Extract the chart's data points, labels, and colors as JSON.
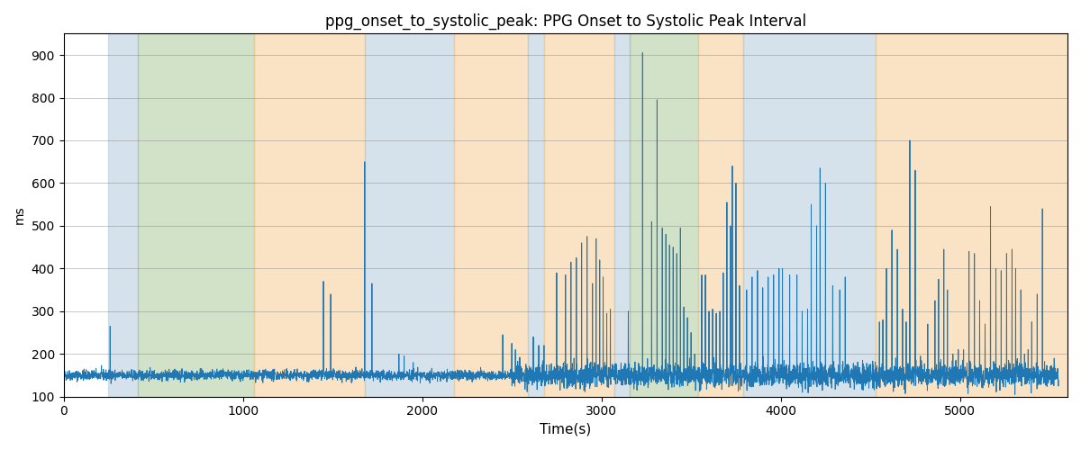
{
  "title": "ppg_onset_to_systolic_peak: PPG Onset to Systolic Peak Interval",
  "xlabel": "Time(s)",
  "ylabel": "ms",
  "ylim": [
    100,
    950
  ],
  "xlim": [
    0,
    5600
  ],
  "line_color": "#1f77b4",
  "line_width": 0.7,
  "bg_color": "#ffffff",
  "regions": [
    {
      "xmin": 250,
      "xmax": 415,
      "color": "#aec6d8",
      "alpha": 0.5
    },
    {
      "xmin": 415,
      "xmax": 1060,
      "color": "#90b87a",
      "alpha": 0.4
    },
    {
      "xmin": 1060,
      "xmax": 1680,
      "color": "#f5c98a",
      "alpha": 0.5
    },
    {
      "xmin": 1680,
      "xmax": 2180,
      "color": "#aec6d8",
      "alpha": 0.5
    },
    {
      "xmin": 2180,
      "xmax": 2590,
      "color": "#f5c98a",
      "alpha": 0.5
    },
    {
      "xmin": 2590,
      "xmax": 2680,
      "color": "#aec6d8",
      "alpha": 0.5
    },
    {
      "xmin": 2680,
      "xmax": 3070,
      "color": "#f5c98a",
      "alpha": 0.5
    },
    {
      "xmin": 3070,
      "xmax": 3160,
      "color": "#aec6d8",
      "alpha": 0.5
    },
    {
      "xmin": 3160,
      "xmax": 3540,
      "color": "#90b87a",
      "alpha": 0.4
    },
    {
      "xmin": 3540,
      "xmax": 3790,
      "color": "#f5c98a",
      "alpha": 0.5
    },
    {
      "xmin": 3790,
      "xmax": 4530,
      "color": "#aec6d8",
      "alpha": 0.5
    },
    {
      "xmin": 4530,
      "xmax": 5600,
      "color": "#f5c98a",
      "alpha": 0.5
    }
  ],
  "seed": 42,
  "n_points": 5500
}
